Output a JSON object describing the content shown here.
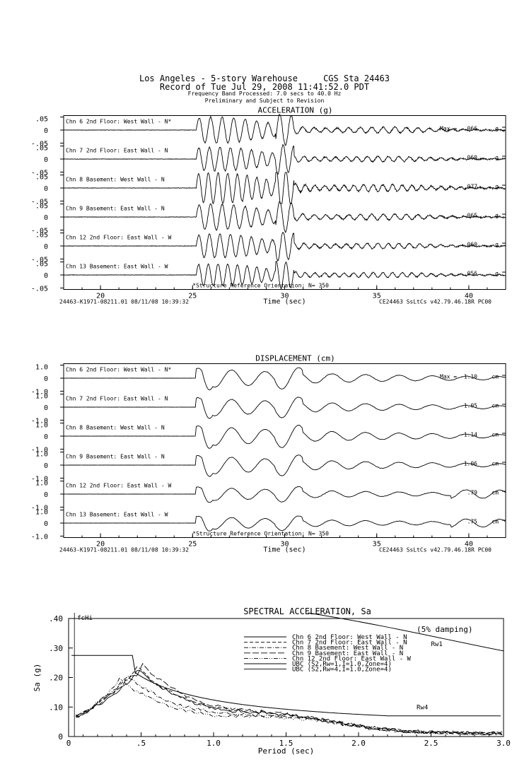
{
  "header": {
    "title": "Los Angeles - 5-story Warehouse     CGS Sta 24463",
    "record": "Record of Tue Jul 29, 2008 11:41:52.0 PDT",
    "band": "Frequency Band Processed: 7.0 secs to 40.0 Hz",
    "note": "Preliminary and Subject to Revision"
  },
  "chart_data": [
    {
      "type": "line",
      "title": "ACCELERATION (g)",
      "xlabel": "Time (sec)",
      "xlim": [
        18,
        42
      ],
      "xticks": [
        20,
        25,
        30,
        35,
        40
      ],
      "ylim": [
        -0.05,
        0.05
      ],
      "yticks": [
        ".05",
        "0",
        "-.05"
      ],
      "max_prefix": "Max =",
      "unit": "g",
      "orientation_note": "*Structure Reference Orientation: N= 350",
      "footer_left": "24463-K1971-08211.01 08/11/08 10:39:32",
      "footer_right": "CE24463  SsLtCs  v42.79.46.18R PC00",
      "series": [
        {
          "name": "Chn 6  2nd Floor: West Wall - N*",
          "max": "-.066"
        },
        {
          "name": "Chn 7  2nd Floor: East Wall - N",
          "max": ".060"
        },
        {
          "name": "Chn 8  Basement: West Wall - N",
          "max": ".077"
        },
        {
          "name": "Chn 9  Basement: East Wall - N",
          "max": ".065"
        },
        {
          "name": "Chn 12  2nd Floor: East Wall - W",
          "max": ".060"
        },
        {
          "name": "Chn 13  Basement: East Wall - W",
          "max": "-.056"
        }
      ]
    },
    {
      "type": "line",
      "title": "DISPLACEMENT (cm)",
      "xlabel": "Time (sec)",
      "xlim": [
        18,
        42
      ],
      "xticks": [
        20,
        25,
        30,
        35,
        40
      ],
      "ylim": [
        -1.0,
        1.0
      ],
      "yticks": [
        "1.0",
        "0",
        "-1.0"
      ],
      "max_prefix": "Max =",
      "unit": "cm",
      "orientation_note": "*Structure Reference Orientation: N= 350",
      "footer_left": "24463-K1971-08211.01 08/11/08 10:39:32",
      "footer_right": "CE24463  SsLtCs  v42.79.46.18R PC00",
      "series": [
        {
          "name": "Chn 6  2nd Floor: West Wall - N*",
          "max": "-1.10"
        },
        {
          "name": "Chn 7  2nd Floor: East Wall - N",
          "max": "-1.05"
        },
        {
          "name": "Chn 8  Basement: West Wall - N",
          "max": "-1.14"
        },
        {
          "name": "Chn 9  Basement: East Wall - N",
          "max": "-1.06"
        },
        {
          "name": "Chn 12  2nd Floor: East Wall - W",
          "max": ".79"
        },
        {
          "name": "Chn 13  Basement: East Wall - W",
          "max": ".75"
        }
      ]
    },
    {
      "type": "line",
      "title": "SPECTRAL ACCELERATION, Sa",
      "xlabel": "Period (sec)",
      "ylabel": "Sa (g)",
      "xlim": [
        0,
        3.0
      ],
      "ylim": [
        0,
        0.4
      ],
      "xticks": [
        {
          "v": 0,
          "t": "0"
        },
        {
          "v": 0.5,
          "t": ".5"
        },
        {
          "v": 1.0,
          "t": "1.0"
        },
        {
          "v": 1.5,
          "t": "1.5"
        },
        {
          "v": 2.0,
          "t": "2.0"
        },
        {
          "v": 2.5,
          "t": "2.5"
        },
        {
          "v": 3.0,
          "t": "3.0"
        }
      ],
      "yticks": [
        {
          "v": 0,
          "t": "0"
        },
        {
          "v": 0.1,
          "t": ".10"
        },
        {
          "v": 0.2,
          "t": ".20"
        },
        {
          "v": 0.3,
          "t": ".30"
        },
        {
          "v": 0.4,
          "t": ".40"
        }
      ],
      "damping_note": "(5% damping)",
      "fchi_label": "fcHi",
      "rw1_label": "Rw1",
      "rw4_label": "Rw4",
      "legend_position": "top-right",
      "series": [
        {
          "name": "Chn 6  2nd Floor: West Wall - N",
          "style": "solid",
          "peak_x": 0.48,
          "peak_y": 0.215
        },
        {
          "name": "Chn 7  2nd Floor: East Wall - N",
          "style": "dashed",
          "peak_x": 0.47,
          "peak_y": 0.225
        },
        {
          "name": "Chn 8  Basement: West Wall - N",
          "style": "dash-dot",
          "peak_x": 0.4,
          "peak_y": 0.2
        },
        {
          "name": "Chn 9  Basement: East Wall - N",
          "style": "long-dash",
          "peak_x": 0.5,
          "peak_y": 0.235
        },
        {
          "name": "Chn 12  2nd Floor: East Wall - W",
          "style": "dash-dot-dot",
          "peak_x": 0.35,
          "peak_y": 0.185
        },
        {
          "name": "UBC (S2,Rw=1,I=1.0,Zone=4)",
          "style": "solid"
        },
        {
          "name": "UBC (S2,Rw=4,I=1.0,Zone=4)",
          "style": "solid"
        }
      ]
    }
  ]
}
